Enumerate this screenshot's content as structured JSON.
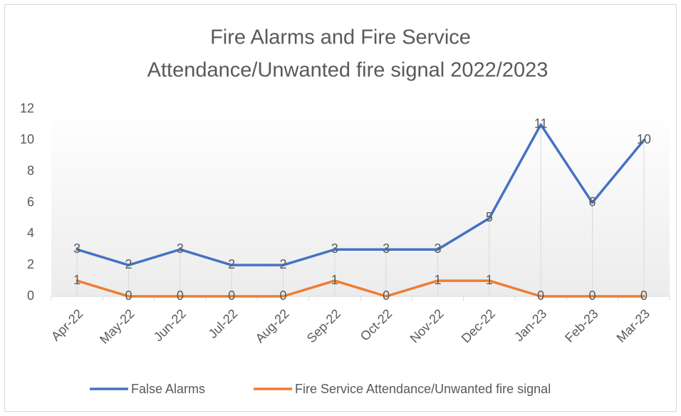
{
  "chart_data": {
    "type": "line",
    "title": [
      "Fire Alarms and Fire Service",
      "Attendance/Unwanted fire signal 2022/2023"
    ],
    "categories": [
      "Apr-22",
      "May-22",
      "Jun-22",
      "Jul-22",
      "Aug-22",
      "Sep-22",
      "Oct-22",
      "Nov-22",
      "Dec-22",
      "Jan-23",
      "Feb-23",
      "Mar-23"
    ],
    "series": [
      {
        "name": "False Alarms",
        "color": "#4472c4",
        "values": [
          3,
          2,
          3,
          2,
          2,
          3,
          3,
          3,
          5,
          11,
          6,
          10
        ]
      },
      {
        "name": "Fire Service Attendance/Unwanted fire signal",
        "color": "#ed7d31",
        "values": [
          1,
          0,
          0,
          0,
          0,
          1,
          0,
          1,
          1,
          0,
          0,
          0
        ]
      }
    ],
    "ylim": [
      0,
      12
    ],
    "yticks": [
      0,
      2,
      4,
      6,
      8,
      10,
      12
    ],
    "drop_lines": true,
    "data_labels": true,
    "legend": "bottom"
  }
}
